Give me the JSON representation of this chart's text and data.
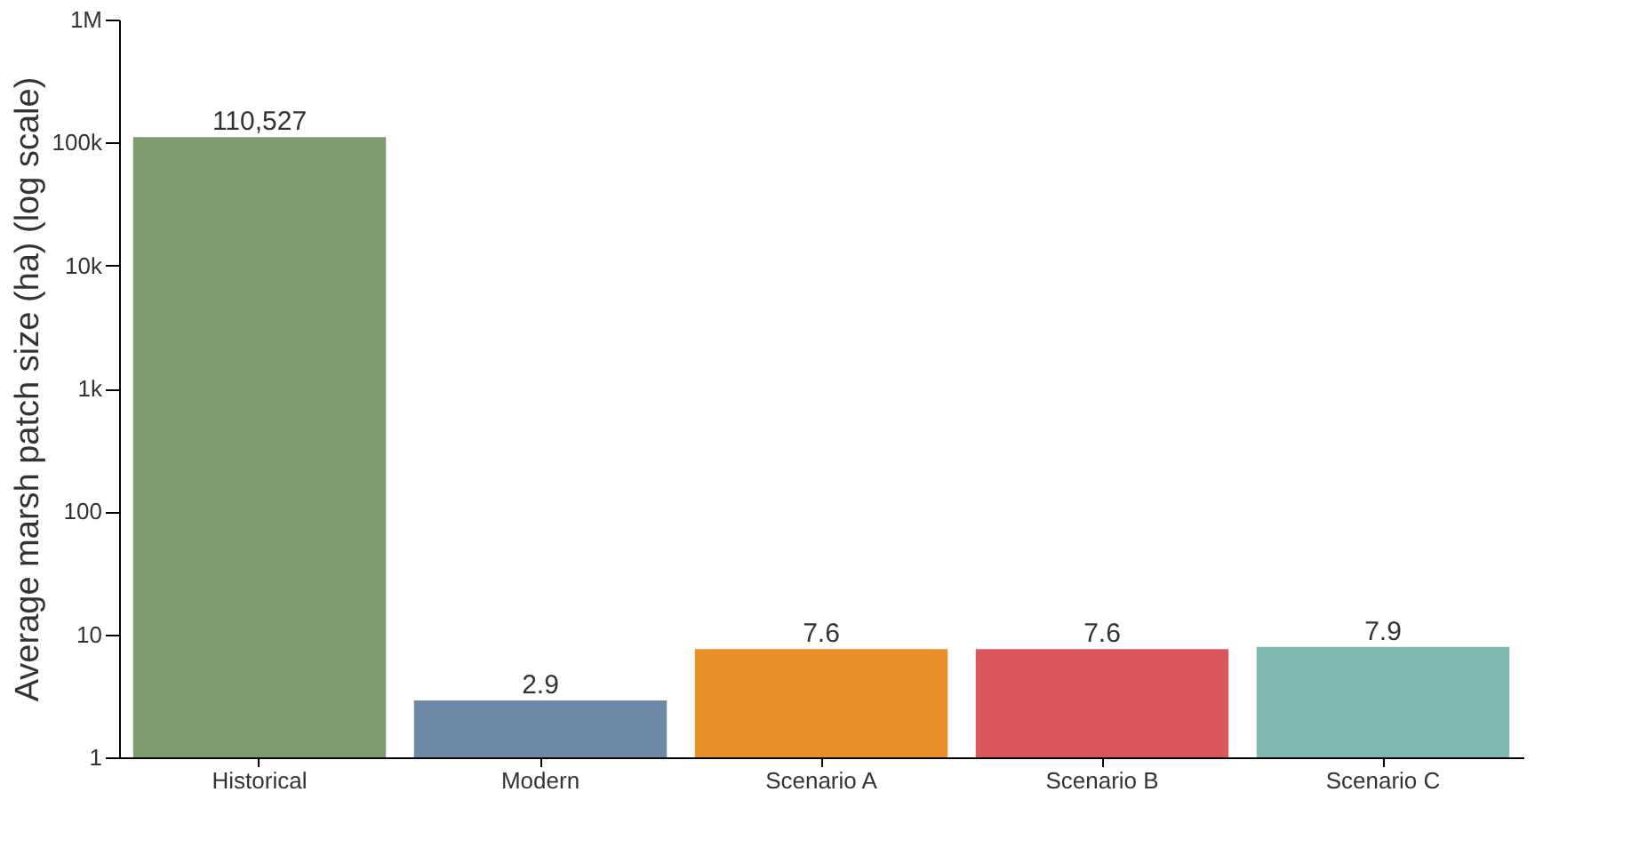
{
  "chart_data": {
    "type": "bar",
    "ylabel": "Average marsh patch size (ha) (log scale)",
    "categories": [
      "Historical",
      "Modern",
      "Scenario A",
      "Scenario B",
      "Scenario C"
    ],
    "values": [
      110527,
      2.9,
      7.6,
      7.6,
      7.9
    ],
    "colors": [
      "#7f9c6e",
      "#6c89a7",
      "#e88f2a",
      "#d9575a",
      "#7fb8b1"
    ],
    "value_labels": [
      "110,527",
      "2.9",
      "7.6",
      "7.6",
      "7.9"
    ],
    "log": true,
    "ylim": [
      1,
      1000000
    ],
    "yticks": [
      1,
      10,
      100,
      {
        "value": 1000,
        "label": "1k"
      },
      {
        "value": 10000,
        "label": "10k"
      },
      {
        "value": 100000,
        "label": "100k"
      },
      {
        "value": 1000000,
        "label": "1M"
      }
    ],
    "grid": false
  }
}
